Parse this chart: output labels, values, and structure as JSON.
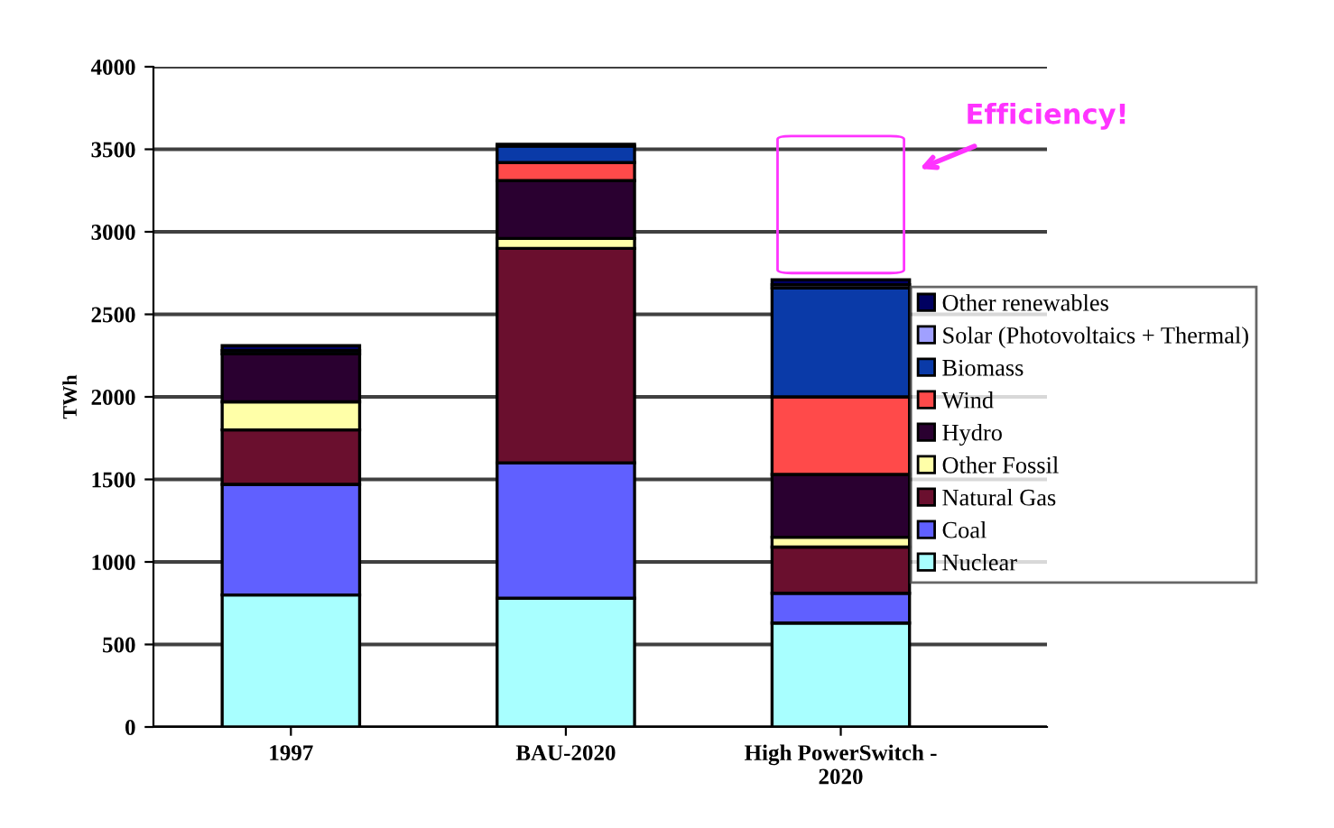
{
  "chart_data": {
    "type": "bar",
    "stacked": true,
    "ylabel": "TWh",
    "categories": [
      "1997",
      "BAU-2020",
      "High PowerSwitch -\n2020"
    ],
    "series": [
      {
        "name": "Nuclear",
        "color": "#a8ffff",
        "values": [
          800,
          780,
          630
        ]
      },
      {
        "name": "Coal",
        "color": "#6060ff",
        "values": [
          670,
          820,
          180
        ]
      },
      {
        "name": "Natural Gas",
        "color": "#6a0f2e",
        "values": [
          330,
          1300,
          280
        ]
      },
      {
        "name": "Other Fossil",
        "color": "#ffffa8",
        "values": [
          170,
          60,
          60
        ]
      },
      {
        "name": "Hydro",
        "color": "#2a0030",
        "values": [
          290,
          350,
          380
        ]
      },
      {
        "name": "Wind",
        "color": "#ff4a4a",
        "values": [
          0,
          110,
          470
        ]
      },
      {
        "name": "Biomass",
        "color": "#0a3aa8",
        "values": [
          20,
          100,
          660
        ]
      },
      {
        "name": "Solar (Photovoltaics + Thermal)",
        "color": "#a0a0ff",
        "values": [
          0,
          0,
          20
        ]
      },
      {
        "name": "Other renewables",
        "color": "#000060",
        "values": [
          30,
          10,
          30
        ]
      }
    ],
    "ylim": [
      0,
      4000
    ],
    "yticks": [
      0,
      500,
      1000,
      1500,
      2000,
      2500,
      3000,
      3500,
      4000
    ],
    "grid": "y",
    "legend": "right",
    "annotations": [
      "Efficiency!"
    ]
  }
}
